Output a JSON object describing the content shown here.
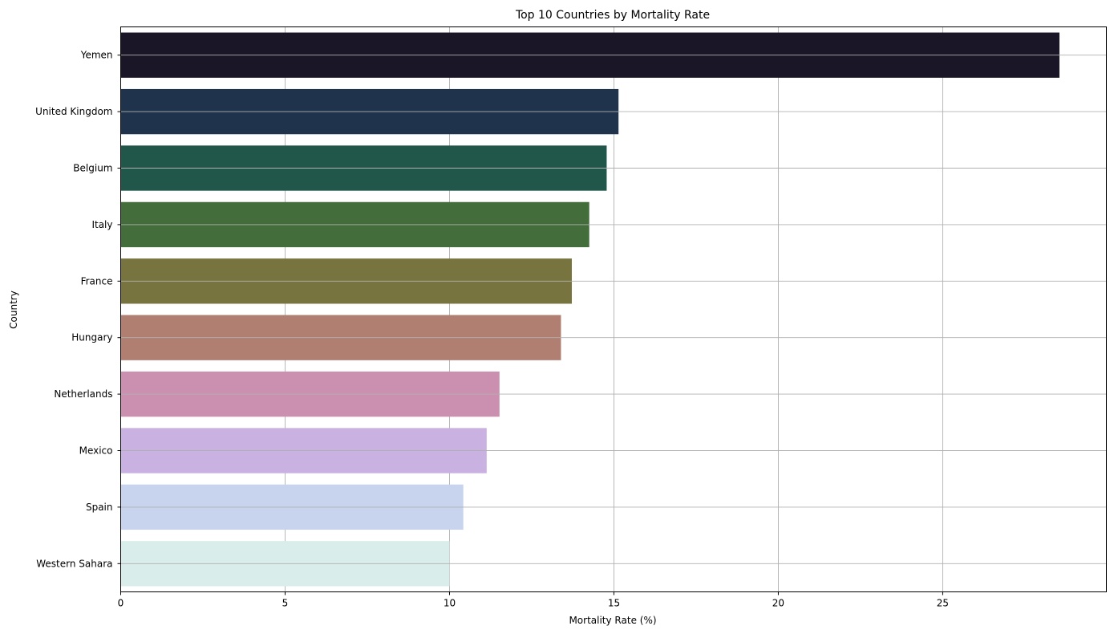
{
  "chart_data": {
    "type": "bar",
    "orientation": "horizontal",
    "title": "Top 10 Countries by Mortality Rate",
    "xlabel": "Mortality Rate (%)",
    "ylabel": "Country",
    "categories": [
      "Yemen",
      "United Kingdom",
      "Belgium",
      "Italy",
      "France",
      "Hungary",
      "Netherlands",
      "Mexico",
      "Spain",
      "Western Sahara"
    ],
    "values": [
      28.55,
      15.14,
      14.78,
      14.25,
      13.72,
      13.39,
      11.52,
      11.13,
      10.42,
      10.0
    ],
    "colors": [
      "#1b1627",
      "#1f344c",
      "#21574b",
      "#436e3c",
      "#787440",
      "#b17f72",
      "#cb8fb0",
      "#c9b1e1",
      "#c8d4ee",
      "#d9edeb"
    ],
    "xlim": [
      0,
      30
    ],
    "xticks": [
      0,
      5,
      10,
      15,
      20,
      25
    ],
    "grid": true
  }
}
